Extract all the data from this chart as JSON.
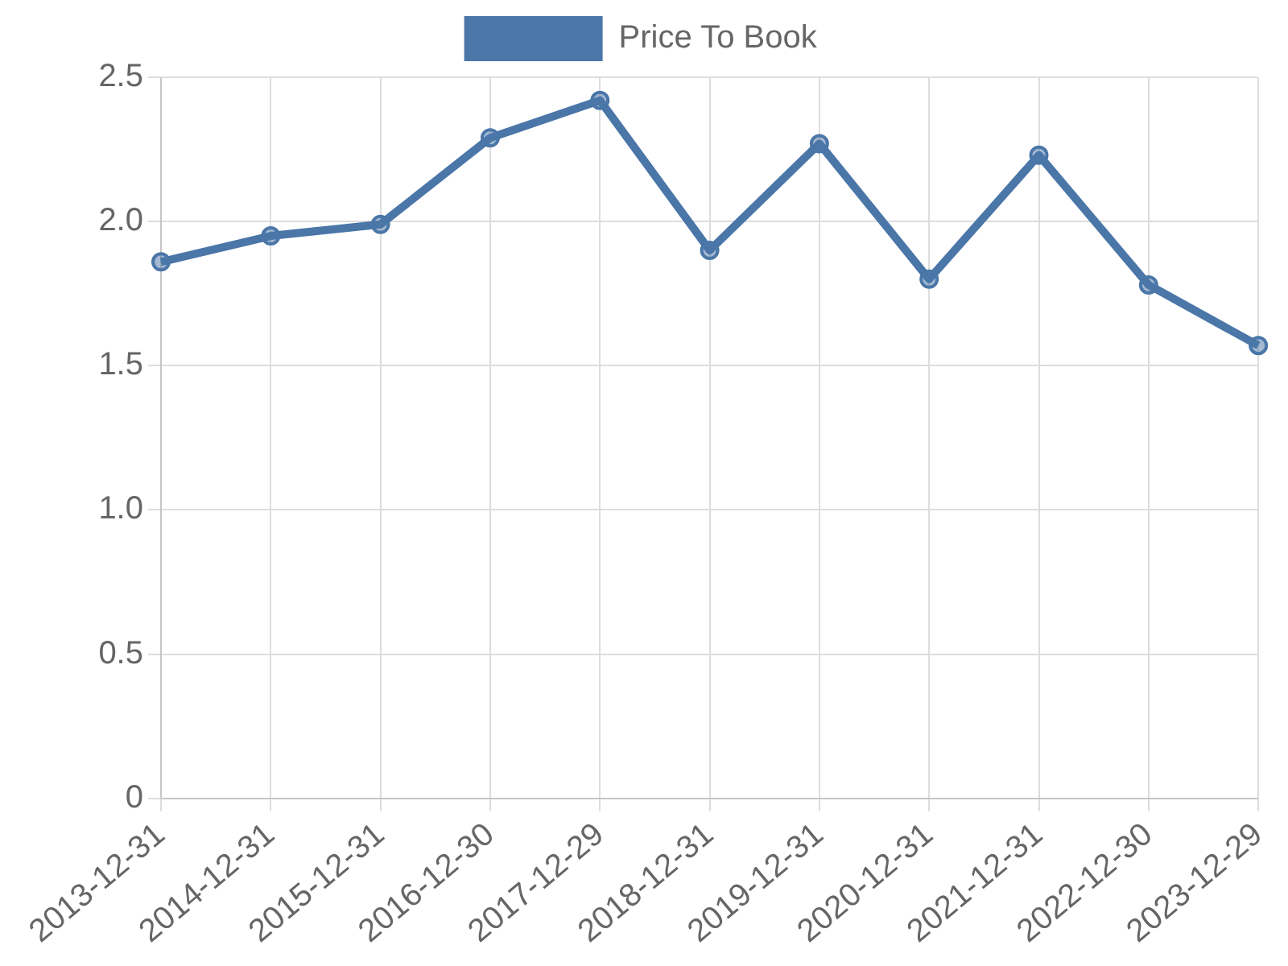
{
  "chart_data": {
    "type": "line",
    "categories": [
      "2013-12-31",
      "2014-12-31",
      "2015-12-31",
      "2016-12-30",
      "2017-12-29",
      "2018-12-31",
      "2019-12-31",
      "2020-12-31",
      "2021-12-31",
      "2022-12-30",
      "2023-12-29"
    ],
    "series": [
      {
        "name": "Price To Book",
        "color": "#4a76a8",
        "values": [
          1.86,
          1.95,
          1.99,
          2.29,
          2.42,
          1.9,
          2.27,
          1.8,
          2.23,
          1.78,
          1.57
        ]
      }
    ],
    "ylim": [
      0,
      2.5
    ],
    "yticks": [
      0,
      0.5,
      {
        "value": 1,
        "label": "1.0"
      },
      1.5,
      {
        "value": 2,
        "label": "2.0"
      },
      2.5
    ],
    "grid": true,
    "legend": "top",
    "marker": "circle"
  }
}
